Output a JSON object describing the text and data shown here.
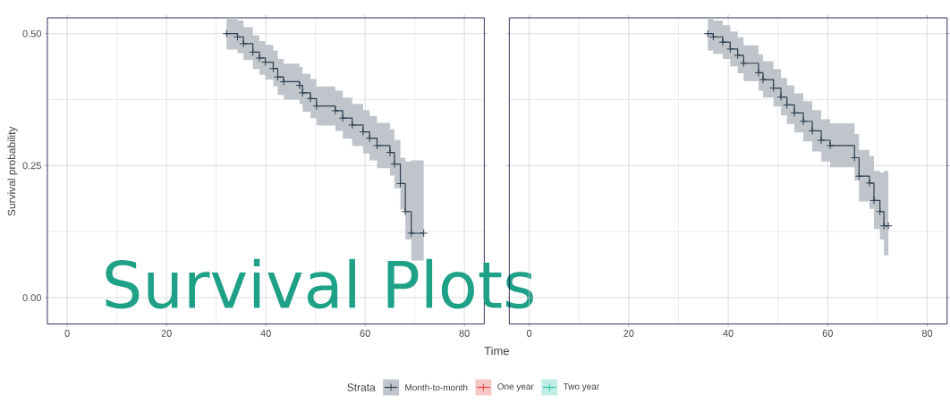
{
  "chart_data": [
    {
      "type": "step",
      "title": "Survival Plots",
      "xlabel": "Time",
      "ylabel": "Survival probability",
      "legend_title": "Strata",
      "legend": "bottom",
      "grid": true,
      "marker": "cross",
      "xlim": [
        -4,
        84
      ],
      "xticks": [
        0,
        20,
        40,
        60,
        80
      ],
      "ylim": [
        -0.05,
        0.53
      ],
      "yticks": [
        {
          "value": 0,
          "label": "0.00"
        },
        {
          "value": 0.25,
          "label": "0.25"
        },
        {
          "value": 0.5,
          "label": "0.50"
        }
      ],
      "series": [
        {
          "name": "Month-to-month",
          "color": "#2c3e50",
          "x": [
            32.1,
            34.3,
            35.5,
            37.4,
            38.7,
            39.9,
            41.5,
            42.4,
            43.6,
            46.8,
            47.4,
            49.0,
            50.2,
            54.0,
            55.5,
            57.4,
            59.6,
            60.9,
            62.4,
            65.0,
            65.9,
            67.1,
            68.1,
            69.3,
            71.8
          ],
          "values": [
            0.5,
            0.494,
            0.481,
            0.465,
            0.454,
            0.446,
            0.434,
            0.418,
            0.409,
            0.402,
            0.388,
            0.377,
            0.363,
            0.354,
            0.34,
            0.327,
            0.314,
            0.302,
            0.288,
            0.275,
            0.253,
            0.216,
            0.163,
            0.122,
            0.122
          ],
          "lower": [
            0.47,
            0.463,
            0.45,
            0.433,
            0.422,
            0.413,
            0.4,
            0.384,
            0.375,
            0.367,
            0.352,
            0.34,
            0.326,
            0.316,
            0.301,
            0.287,
            0.273,
            0.26,
            0.245,
            0.231,
            0.207,
            0.167,
            0.11,
            0.07,
            0.07
          ],
          "upper": [
            0.53,
            0.525,
            0.512,
            0.497,
            0.486,
            0.479,
            0.468,
            0.452,
            0.443,
            0.437,
            0.424,
            0.414,
            0.4,
            0.392,
            0.379,
            0.367,
            0.355,
            0.344,
            0.331,
            0.319,
            0.299,
            0.265,
            0.258,
            0.26,
            0.26
          ]
        },
        {
          "name": "One year",
          "color": "#e7474a"
        },
        {
          "name": "Two year",
          "color": "#2ec4a6"
        }
      ]
    },
    {
      "type": "step",
      "grid": true,
      "marker": "cross",
      "tick_labels": "x",
      "xlim": [
        -4,
        84
      ],
      "xticks": [
        0,
        20,
        40,
        60,
        80
      ],
      "ylim": [
        -0.05,
        0.53
      ],
      "yticks": [
        0,
        0.25,
        0.5
      ],
      "series": [
        {
          "color": "#2c3e50",
          "x": [
            35.9,
            37.0,
            38.9,
            40.4,
            41.9,
            43.1,
            46.1,
            47.0,
            49.1,
            50.6,
            51.8,
            53.3,
            55.1,
            56.9,
            58.7,
            60.5,
            65.4,
            66.3,
            68.4,
            69.3,
            70.5,
            71.3,
            72.2
          ],
          "values": [
            0.5,
            0.494,
            0.484,
            0.471,
            0.459,
            0.444,
            0.426,
            0.413,
            0.397,
            0.38,
            0.365,
            0.35,
            0.334,
            0.316,
            0.298,
            0.288,
            0.265,
            0.23,
            0.217,
            0.184,
            0.163,
            0.136,
            0.136
          ],
          "lower": [
            0.468,
            0.462,
            0.452,
            0.438,
            0.425,
            0.41,
            0.392,
            0.379,
            0.362,
            0.345,
            0.329,
            0.313,
            0.296,
            0.277,
            0.258,
            0.247,
            0.222,
            0.182,
            0.168,
            0.13,
            0.11,
            0.08,
            0.08
          ],
          "upper": [
            0.53,
            0.525,
            0.516,
            0.504,
            0.493,
            0.478,
            0.461,
            0.448,
            0.433,
            0.416,
            0.402,
            0.387,
            0.372,
            0.355,
            0.338,
            0.33,
            0.31,
            0.28,
            0.268,
            0.24,
            0.237,
            0.24,
            0.24
          ]
        }
      ]
    }
  ]
}
